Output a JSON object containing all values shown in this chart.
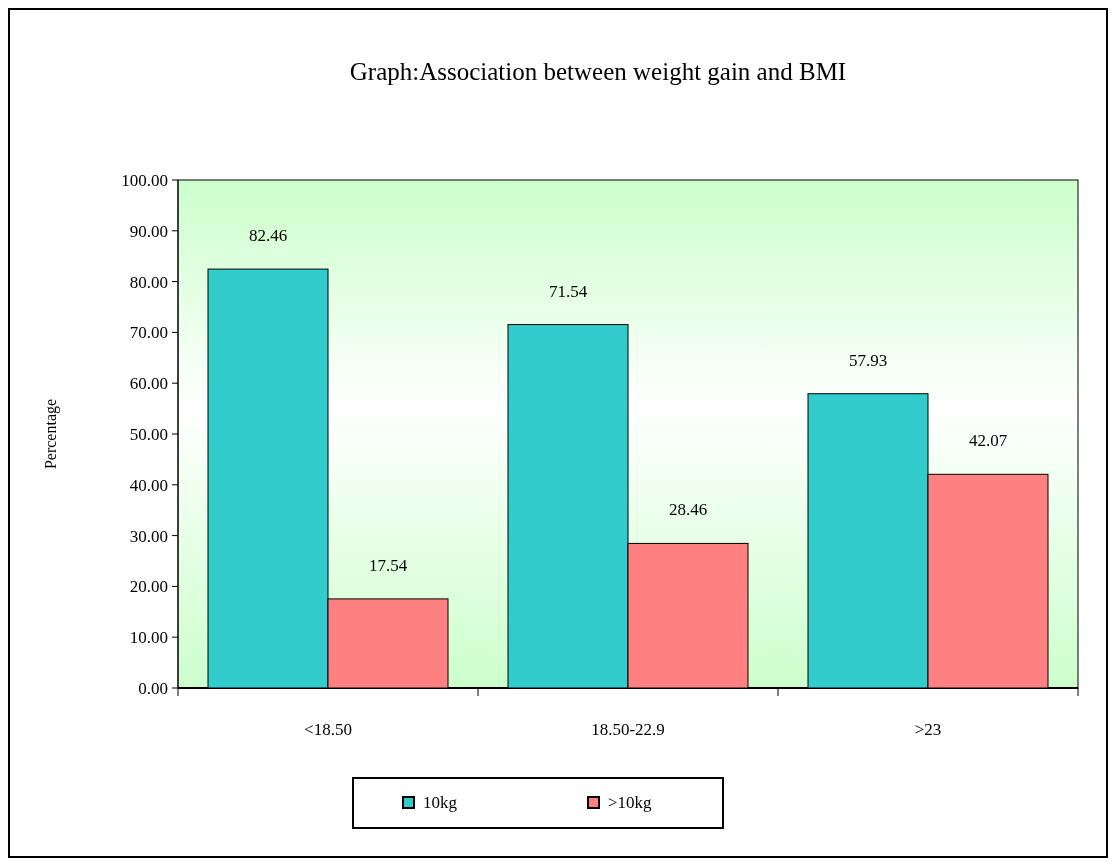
{
  "chart_data": {
    "type": "bar",
    "title": "Graph:Association between weight gain and BMI",
    "ylabel": "Percentage",
    "categories": [
      "<18.50",
      "18.50-22.9",
      ">23"
    ],
    "series": [
      {
        "name": "10kg",
        "color": "#33cccc",
        "values": [
          82.46,
          71.54,
          57.93
        ]
      },
      {
        "name": ">10kg",
        "color": "#ff8080",
        "values": [
          17.54,
          28.46,
          42.07
        ]
      }
    ],
    "ylim": [
      0,
      100
    ],
    "yticks": [
      {
        "value": 0,
        "label": "0.00"
      },
      {
        "value": 10,
        "label": "10.00"
      },
      {
        "value": 20,
        "label": "20.00"
      },
      {
        "value": 30,
        "label": "30.00"
      },
      {
        "value": 40,
        "label": "40.00"
      },
      {
        "value": 50,
        "label": "50.00"
      },
      {
        "value": 60,
        "label": "60.00"
      },
      {
        "value": 70,
        "label": "70.00"
      },
      {
        "value": 80,
        "label": "80.00"
      },
      {
        "value": 90,
        "label": "90.00"
      },
      {
        "value": 100,
        "label": "100.00"
      }
    ],
    "data_labels": true,
    "legend": "bottom"
  }
}
